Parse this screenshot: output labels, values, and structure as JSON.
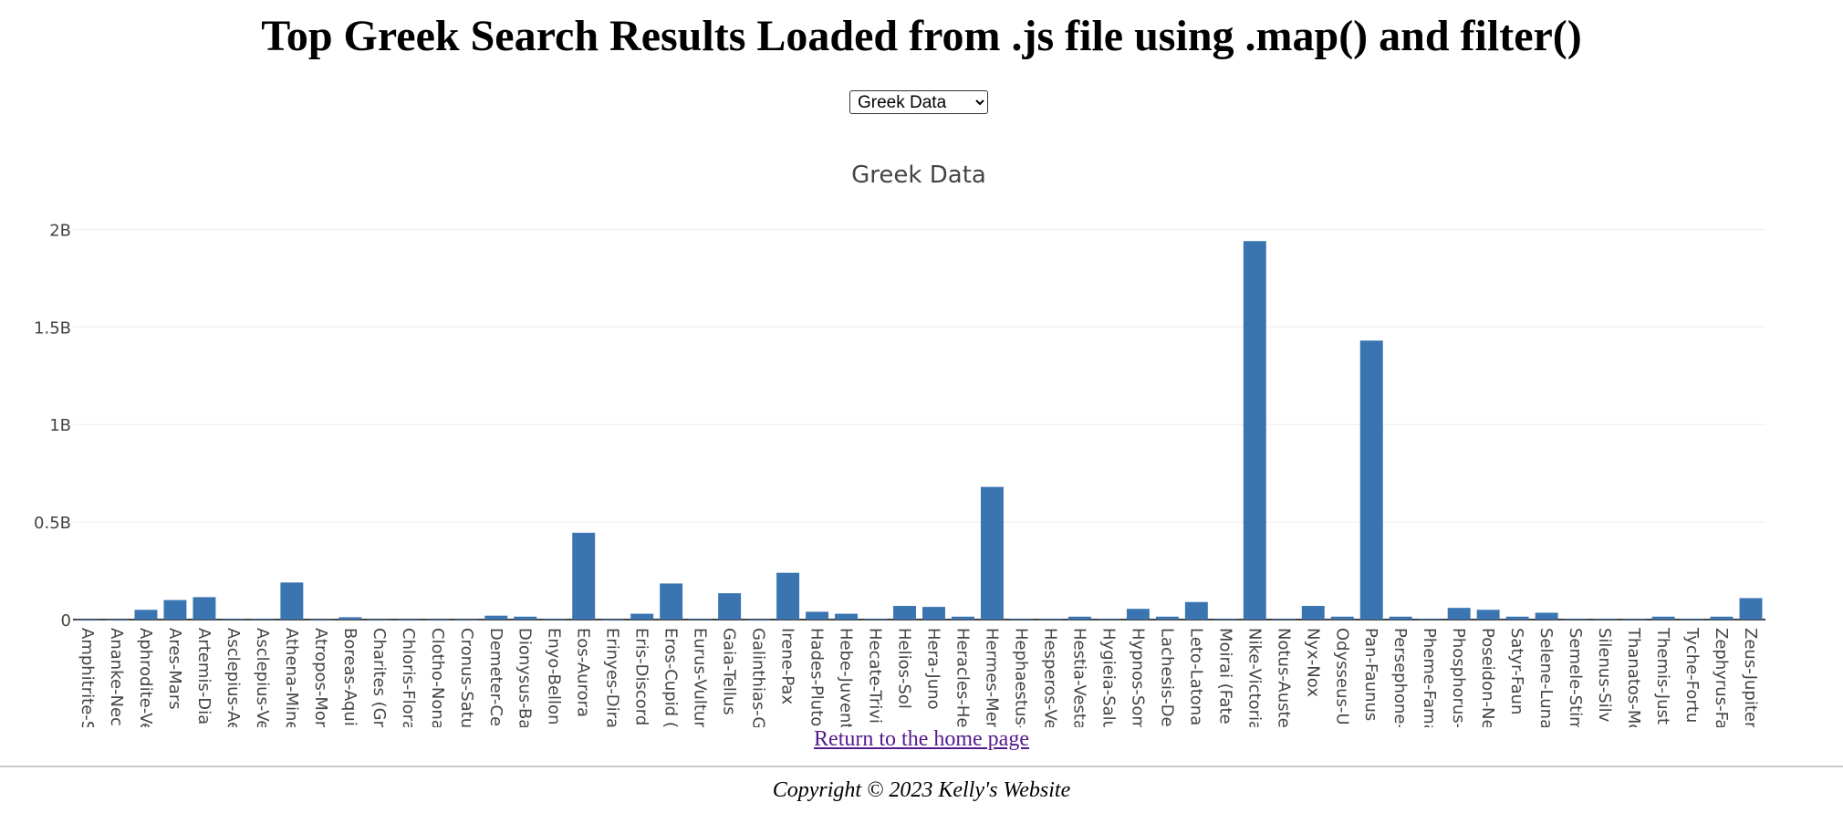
{
  "page": {
    "title": "Top Greek Search Results Loaded from .js file using .map() and filter()",
    "select": {
      "selected": "Greek Data",
      "options": [
        "Greek Data"
      ]
    },
    "home_link": "Return to the home page",
    "footer": "Copyright © 2023 Kelly's Website"
  },
  "chart_data": {
    "type": "bar",
    "title": "Greek Data",
    "xlabel": "",
    "ylabel": "",
    "ylim": [
      0,
      2100000000
    ],
    "grid": true,
    "bar_color": "#3a75b1",
    "yticks": [
      {
        "value": 0,
        "label": "0"
      },
      {
        "value": 500000000,
        "label": "0.5B"
      },
      {
        "value": 1000000000,
        "label": "1B"
      },
      {
        "value": 1500000000,
        "label": "1.5B"
      },
      {
        "value": 2000000000,
        "label": "2B"
      }
    ],
    "categories": [
      "Amphitrite-S",
      "Ananke-Nec",
      "Aphrodite-Ve",
      "Ares-Mars",
      "Artemis-Dia",
      "Asclepius-Ae",
      "Asclepius-Ve",
      "Athena-Mine",
      "Atropos-Mor",
      "Boreas-Aqui",
      "Charites (Gr",
      "Chloris-Flora",
      "Clotho-Nona",
      "Cronus-Satu",
      "Demeter-Ce",
      "Dionysus-Ba",
      "Enyo-Bellon",
      "Eos-Aurora",
      "Erinyes-Dira",
      "Eris-Discord",
      "Eros-Cupid (",
      "Eurus-Vultur",
      "Gaia-Tellus",
      "Galinthias-G",
      "Irene-Pax",
      "Hades-Pluto",
      "Hebe-Juvent",
      "Hecate-Trivi",
      "Helios-Sol",
      "Hera-Juno",
      "Heracles-He",
      "Hermes-Mer",
      "Hephaestus-",
      "Hesperos-Ve",
      "Hestia-Vesta",
      "Hygieia-Salu",
      "Hypnos-Som",
      "Lachesis-De",
      "Leto-Latona",
      "Moirai (Fate",
      "Nike-Victoria",
      "Notus-Auste",
      "Nyx-Nox",
      "Odysseus-U",
      "Pan-Faunus",
      "Persephone-",
      "Pheme-Fama",
      "Phosphorus-",
      "Poseidon-Ne",
      "Satyr-Faun",
      "Selene-Luna",
      "Semele-Stim",
      "Silenus-Silv",
      "Thanatos-Mo",
      "Themis-Just",
      "Tyche-Fortu",
      "Zephyrus-Fa",
      "Zeus-Jupiter"
    ],
    "values": [
      2000000,
      2000000,
      50000000,
      100000000,
      115000000,
      3000000,
      3000000,
      190000000,
      2000000,
      12000000,
      2000000,
      2000000,
      2000000,
      2000000,
      20000000,
      15000000,
      3000000,
      445000000,
      2000000,
      30000000,
      185000000,
      3000000,
      135000000,
      2000000,
      240000000,
      40000000,
      30000000,
      3000000,
      70000000,
      65000000,
      15000000,
      680000000,
      3000000,
      3000000,
      15000000,
      3000000,
      55000000,
      15000000,
      90000000,
      3000000,
      1940000000,
      3000000,
      70000000,
      15000000,
      1430000000,
      15000000,
      3000000,
      60000000,
      50000000,
      15000000,
      35000000,
      3000000,
      3000000,
      3000000,
      15000000,
      3000000,
      15000000,
      110000000
    ]
  }
}
